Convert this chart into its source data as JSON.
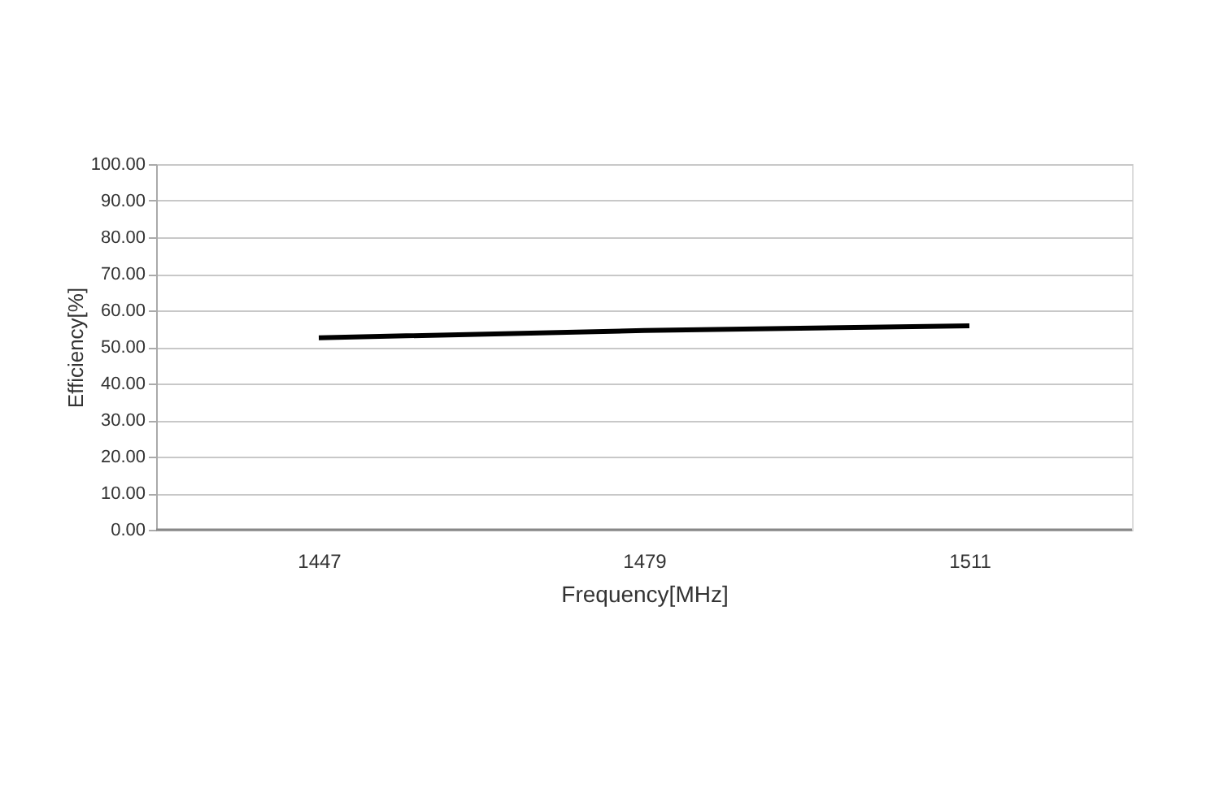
{
  "chart_data": {
    "type": "line",
    "xlabel": "Frequency[MHz]",
    "ylabel": "Efficiency[%]",
    "categories": [
      "1447",
      "1479",
      "1511"
    ],
    "series": [
      {
        "color": "#000000",
        "values": [
          52.5,
          54.5,
          55.8
        ]
      }
    ],
    "ylim": [
      0,
      100
    ],
    "yticks": [
      {
        "value": 0,
        "label": "0.00"
      },
      {
        "value": 10,
        "label": "10.00"
      },
      {
        "value": 20,
        "label": "20.00"
      },
      {
        "value": 30,
        "label": "30.00"
      },
      {
        "value": 40,
        "label": "40.00"
      },
      {
        "value": 50,
        "label": "50.00"
      },
      {
        "value": 60,
        "label": "60.00"
      },
      {
        "value": 70,
        "label": "70.00"
      },
      {
        "value": 80,
        "label": "80.00"
      },
      {
        "value": 90,
        "label": "90.00"
      },
      {
        "value": 100,
        "label": "100.00"
      }
    ],
    "grid": "y",
    "legend": false,
    "marker": "none",
    "line_style": "solid"
  }
}
